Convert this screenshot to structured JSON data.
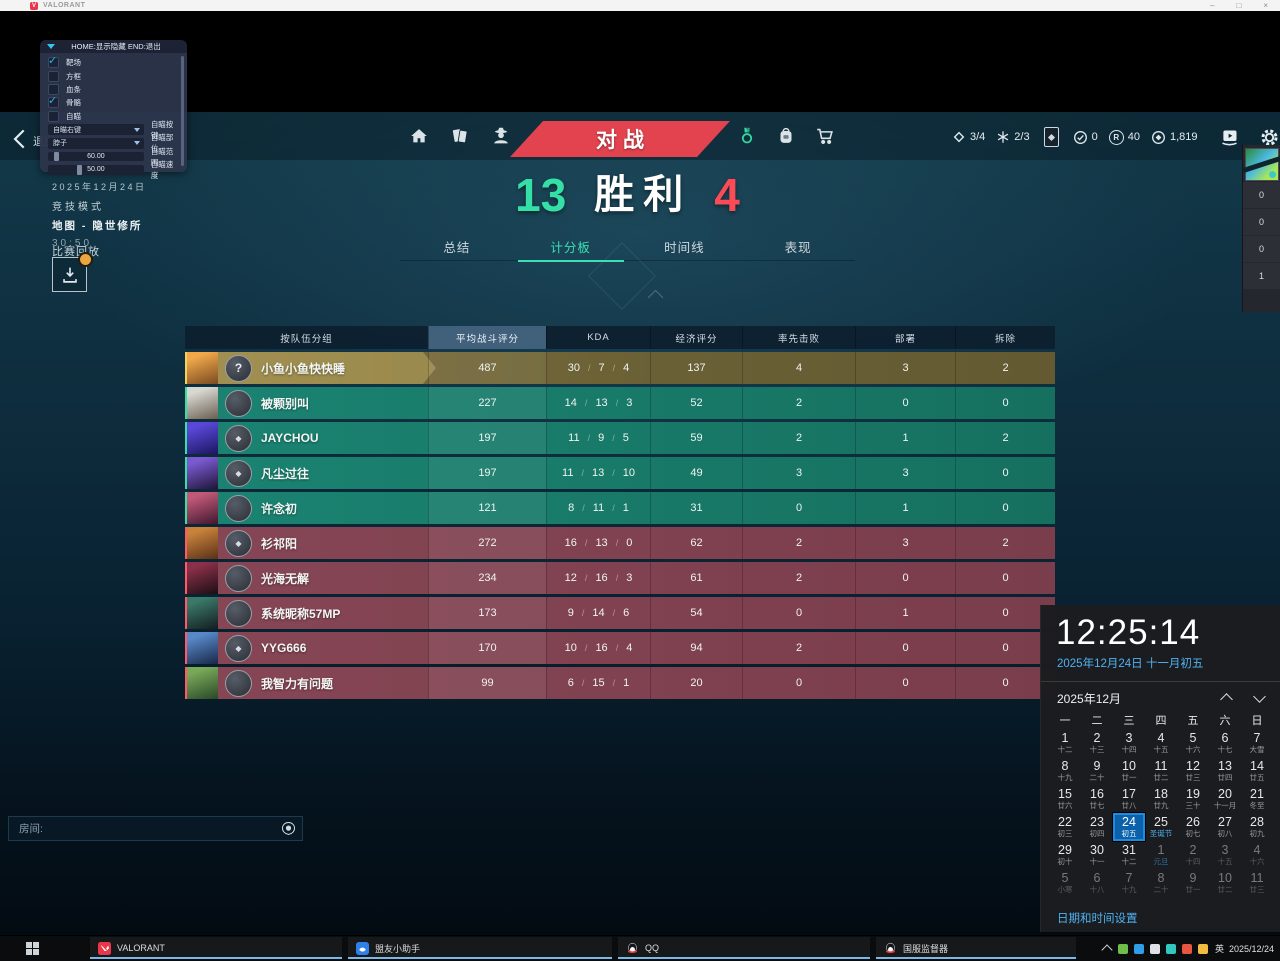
{
  "titlebar": {
    "app": "VALORANT",
    "controls": {
      "minimize": "–",
      "maximize": "□",
      "close": "×"
    }
  },
  "overlay": {
    "title": "HOME:显示隐藏 END:退出",
    "checkboxes": [
      {
        "label": "靶场",
        "checked": true
      },
      {
        "label": "方框",
        "checked": false
      },
      {
        "label": "血条",
        "checked": false
      },
      {
        "label": "骨骼",
        "checked": true
      },
      {
        "label": "自瞄",
        "checked": false
      }
    ],
    "dropdowns": [
      {
        "value": "自瞄右键",
        "label": "自瞄按键"
      },
      {
        "value": "脖子",
        "label": "自瞄部位"
      }
    ],
    "sliders": [
      {
        "value": "60.00",
        "label": "自瞄范围",
        "fill": 6
      },
      {
        "value": "50.00",
        "label": "自瞄速度",
        "fill": 30
      }
    ]
  },
  "nav": {
    "back_label": "退出",
    "banner": "对战"
  },
  "wallet": {
    "left": [
      {
        "icon": "kingdom-credits",
        "value": "3/4"
      },
      {
        "icon": "spark",
        "value": "2/3"
      }
    ],
    "right": [
      {
        "icon": "agent-token",
        "value": "0"
      },
      {
        "icon": "radianite",
        "value": "40",
        "letter": "R"
      },
      {
        "icon": "valorant-points",
        "value": "1,819"
      }
    ]
  },
  "match": {
    "date": "2025年12月24日",
    "mode": "竞技模式",
    "map": "地图 - 隐世修所",
    "duration": "30:50",
    "replay": "比赛回放",
    "score_left": "13",
    "verdict": "胜利",
    "score_right": "4"
  },
  "tabs": [
    {
      "label": "总结",
      "active": false
    },
    {
      "label": "计分板",
      "active": true
    },
    {
      "label": "时间线",
      "active": false
    },
    {
      "label": "表现",
      "active": false
    }
  ],
  "scoreboard": {
    "columns": [
      "按队伍分组",
      "平均战斗评分",
      "KDA",
      "经济评分",
      "率先击败",
      "部署",
      "拆除"
    ],
    "rows": [
      {
        "team": "self",
        "badge": "question",
        "name": "小鱼小鱼快快睡",
        "acs": "487",
        "k": "30",
        "d": "7",
        "a": "4",
        "econ": "137",
        "fb": "4",
        "plants": "3",
        "defuses": "2",
        "av": [
          "#f0a84a",
          "#7a4a20"
        ]
      },
      {
        "team": "ally",
        "badge": "plain",
        "name": "被颗别叫",
        "acs": "227",
        "k": "14",
        "d": "13",
        "a": "3",
        "econ": "52",
        "fb": "2",
        "plants": "0",
        "defuses": "0",
        "av": [
          "#d8d8d2",
          "#6a5f50"
        ]
      },
      {
        "team": "ally",
        "badge": "star",
        "name": "JAYCHOU",
        "acs": "197",
        "k": "11",
        "d": "9",
        "a": "5",
        "econ": "59",
        "fb": "2",
        "plants": "1",
        "defuses": "2",
        "av": [
          "#5948d8",
          "#1c1660"
        ]
      },
      {
        "team": "ally",
        "badge": "star",
        "name": "凡尘过往",
        "acs": "197",
        "k": "11",
        "d": "13",
        "a": "10",
        "econ": "49",
        "fb": "3",
        "plants": "3",
        "defuses": "0",
        "av": [
          "#7a5ad0",
          "#201538"
        ]
      },
      {
        "team": "ally",
        "badge": "plain",
        "name": "许念初",
        "acs": "121",
        "k": "8",
        "d": "11",
        "a": "1",
        "econ": "31",
        "fb": "0",
        "plants": "1",
        "defuses": "0",
        "av": [
          "#c05878",
          "#40182e"
        ]
      },
      {
        "team": "enemy",
        "badge": "star",
        "name": "衫祁阳",
        "acs": "272",
        "k": "16",
        "d": "13",
        "a": "0",
        "econ": "62",
        "fb": "2",
        "plants": "3",
        "defuses": "2",
        "av": [
          "#c8823a",
          "#5a3018"
        ]
      },
      {
        "team": "enemy",
        "badge": "plain",
        "name": "光海无解",
        "acs": "234",
        "k": "12",
        "d": "16",
        "a": "3",
        "econ": "61",
        "fb": "2",
        "plants": "0",
        "defuses": "0",
        "av": [
          "#8a3048",
          "#1c0e14"
        ]
      },
      {
        "team": "enemy",
        "badge": "plain",
        "name": "系统昵称57MP",
        "acs": "173",
        "k": "9",
        "d": "14",
        "a": "6",
        "econ": "54",
        "fb": "0",
        "plants": "1",
        "defuses": "0",
        "av": [
          "#3a7868",
          "#141c20"
        ]
      },
      {
        "team": "enemy",
        "badge": "star",
        "name": "YYG666",
        "acs": "170",
        "k": "10",
        "d": "16",
        "a": "4",
        "econ": "94",
        "fb": "2",
        "plants": "0",
        "defuses": "0",
        "av": [
          "#5888c8",
          "#182848"
        ]
      },
      {
        "team": "enemy",
        "badge": "plain",
        "name": "我智力有问题",
        "acs": "99",
        "k": "6",
        "d": "15",
        "a": "1",
        "econ": "20",
        "fb": "0",
        "plants": "0",
        "defuses": "0",
        "av": [
          "#78a858",
          "#2a4828"
        ]
      }
    ]
  },
  "side_panel": {
    "values": [
      "0",
      "0",
      "0",
      "1"
    ]
  },
  "chat": {
    "label": "房间:"
  },
  "clock": {
    "time": "12:25:14",
    "date_line": "2025年12月24日 十一月初五",
    "month": "2025年12月",
    "weekdays": [
      "一",
      "二",
      "三",
      "四",
      "五",
      "六",
      "日"
    ],
    "days": [
      {
        "d": "1",
        "l": "十二"
      },
      {
        "d": "2",
        "l": "十三"
      },
      {
        "d": "3",
        "l": "十四"
      },
      {
        "d": "4",
        "l": "十五"
      },
      {
        "d": "5",
        "l": "十六"
      },
      {
        "d": "6",
        "l": "十七"
      },
      {
        "d": "7",
        "l": "大雪"
      },
      {
        "d": "8",
        "l": "十九"
      },
      {
        "d": "9",
        "l": "二十"
      },
      {
        "d": "10",
        "l": "廿一"
      },
      {
        "d": "11",
        "l": "廿二"
      },
      {
        "d": "12",
        "l": "廿三"
      },
      {
        "d": "13",
        "l": "廿四"
      },
      {
        "d": "14",
        "l": "廿五"
      },
      {
        "d": "15",
        "l": "廿六"
      },
      {
        "d": "16",
        "l": "廿七"
      },
      {
        "d": "17",
        "l": "廿八"
      },
      {
        "d": "18",
        "l": "廿九"
      },
      {
        "d": "19",
        "l": "三十"
      },
      {
        "d": "20",
        "l": "十一月"
      },
      {
        "d": "21",
        "l": "冬至"
      },
      {
        "d": "22",
        "l": "初三"
      },
      {
        "d": "23",
        "l": "初四"
      },
      {
        "d": "24",
        "l": "初五",
        "selected": true
      },
      {
        "d": "25",
        "l": "圣诞节",
        "holiday": true
      },
      {
        "d": "26",
        "l": "初七"
      },
      {
        "d": "27",
        "l": "初八"
      },
      {
        "d": "28",
        "l": "初九"
      },
      {
        "d": "29",
        "l": "初十"
      },
      {
        "d": "30",
        "l": "十一"
      },
      {
        "d": "31",
        "l": "十二"
      },
      {
        "d": "1",
        "l": "元旦",
        "dim": true,
        "holiday": true
      },
      {
        "d": "2",
        "l": "十四",
        "dim": true
      },
      {
        "d": "3",
        "l": "十五",
        "dim": true
      },
      {
        "d": "4",
        "l": "十六",
        "dim": true
      },
      {
        "d": "5",
        "l": "小寒",
        "dim": true
      },
      {
        "d": "6",
        "l": "十八",
        "dim": true
      },
      {
        "d": "7",
        "l": "十九",
        "dim": true
      },
      {
        "d": "8",
        "l": "二十",
        "dim": true
      },
      {
        "d": "9",
        "l": "廿一",
        "dim": true
      },
      {
        "d": "10",
        "l": "廿二",
        "dim": true
      },
      {
        "d": "11",
        "l": "廿三",
        "dim": true
      }
    ],
    "settings": "日期和时间设置"
  },
  "taskbar": {
    "buttons": [
      {
        "icon": "valorant",
        "label": "VALORANT"
      },
      {
        "icon": "blueapp",
        "label": "盟友小助手"
      },
      {
        "icon": "qq",
        "label": "QQ"
      },
      {
        "icon": "qq",
        "label": "国服监督器"
      }
    ],
    "tray_colors": [
      "#6fbe4a",
      "#2f9de8",
      "#dfe3e8",
      "#30c8c0",
      "#e85540",
      "#f2bc40"
    ],
    "ime": "英",
    "tray_date": "2025/12/24"
  }
}
